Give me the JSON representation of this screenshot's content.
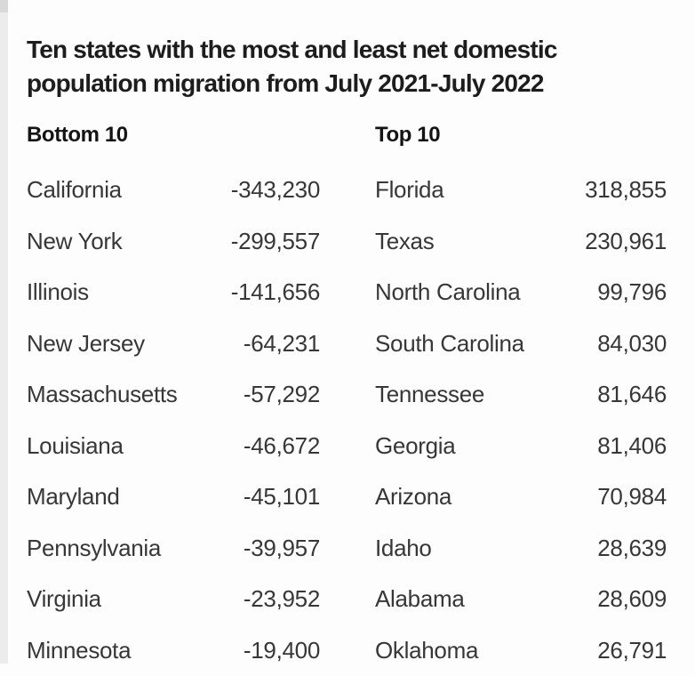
{
  "title_lines": {
    "line1": "Ten states with the most and least net domestic",
    "line2": "population migration from July 2021-July 2022"
  },
  "chart_data": {
    "type": "table",
    "title": "Ten states with the most and least net domestic population migration from July 2021-July 2022",
    "columns": [
      {
        "header": "Bottom 10",
        "rows": [
          {
            "state": "California",
            "value": "-343,230"
          },
          {
            "state": "New York",
            "value": "-299,557"
          },
          {
            "state": "Illinois",
            "value": "-141,656"
          },
          {
            "state": "New Jersey",
            "value": "-64,231"
          },
          {
            "state": "Massachusetts",
            "value": "-57,292"
          },
          {
            "state": "Louisiana",
            "value": "-46,672"
          },
          {
            "state": "Maryland",
            "value": "-45,101"
          },
          {
            "state": "Pennsylvania",
            "value": "-39,957"
          },
          {
            "state": "Virginia",
            "value": "-23,952"
          },
          {
            "state": "Minnesota",
            "value": "-19,400"
          }
        ]
      },
      {
        "header": "Top 10",
        "rows": [
          {
            "state": "Florida",
            "value": "318,855"
          },
          {
            "state": "Texas",
            "value": "230,961"
          },
          {
            "state": "North Carolina",
            "value": "99,796"
          },
          {
            "state": "South Carolina",
            "value": "84,030"
          },
          {
            "state": "Tennessee",
            "value": "81,646"
          },
          {
            "state": "Georgia",
            "value": "81,406"
          },
          {
            "state": "Arizona",
            "value": "70,984"
          },
          {
            "state": "Idaho",
            "value": "28,639"
          },
          {
            "state": "Alabama",
            "value": "28,609"
          },
          {
            "state": "Oklahoma",
            "value": "26,791"
          }
        ]
      }
    ]
  },
  "colors": {
    "background": "#fdfdfd",
    "left_strip": "#ececec",
    "left_strip_top": "#d8d8d8",
    "title_text": "#1d1d1d",
    "row_text": "#373737"
  }
}
